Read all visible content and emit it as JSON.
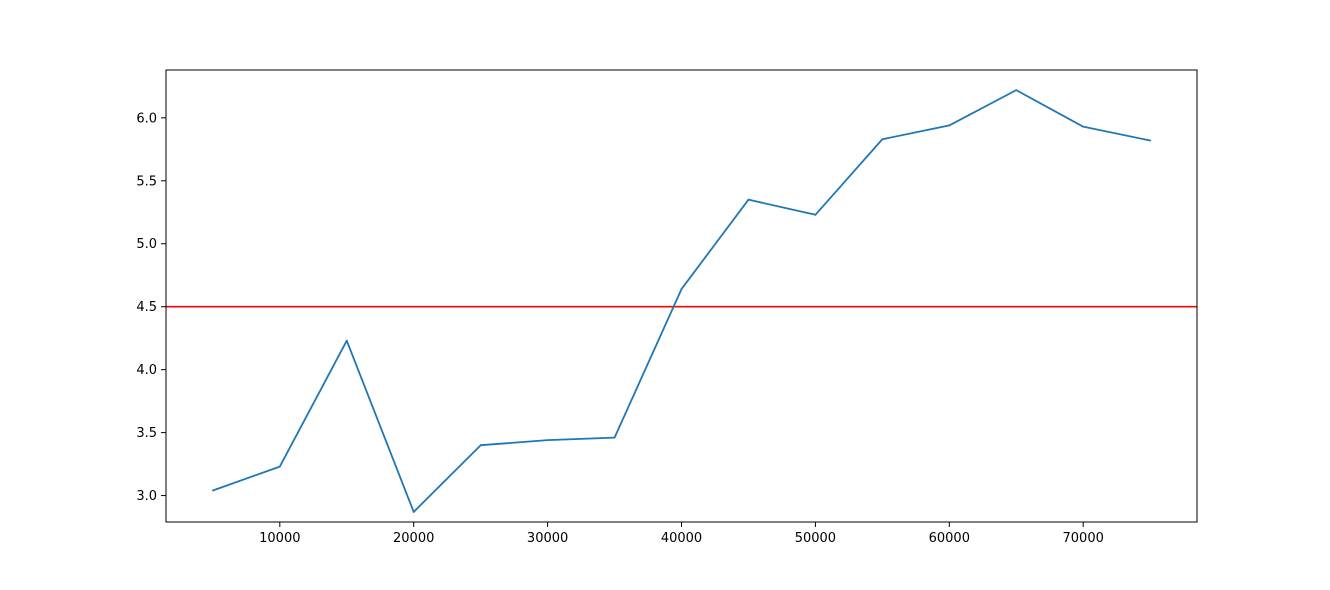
{
  "chart_data": {
    "type": "line",
    "title": "",
    "xlabel": "",
    "ylabel": "",
    "xlim": [
      1500,
      78500
    ],
    "ylim": [
      2.79,
      6.38
    ],
    "grid": false,
    "x_ticks": [
      10000,
      20000,
      30000,
      40000,
      50000,
      60000,
      70000
    ],
    "x_tick_labels": [
      "10000",
      "20000",
      "30000",
      "40000",
      "50000",
      "60000",
      "70000"
    ],
    "y_ticks": [
      3.0,
      3.5,
      4.0,
      4.5,
      5.0,
      5.5,
      6.0
    ],
    "y_tick_labels": [
      "3.0",
      "3.5",
      "4.0",
      "4.5",
      "5.0",
      "5.5",
      "6.0"
    ],
    "series": [
      {
        "color": "#1f77b4",
        "x": [
          5000,
          10000,
          15000,
          20000,
          25000,
          30000,
          35000,
          40000,
          45000,
          50000,
          55000,
          60000,
          65000,
          70000,
          75000
        ],
        "values": [
          3.04,
          3.23,
          4.23,
          2.87,
          3.4,
          3.44,
          3.46,
          4.64,
          5.35,
          5.23,
          5.83,
          5.94,
          6.22,
          5.93,
          5.82
        ]
      }
    ],
    "reference_lines": [
      {
        "orientation": "horizontal",
        "y": 4.5,
        "color": "#ff0000"
      }
    ]
  }
}
